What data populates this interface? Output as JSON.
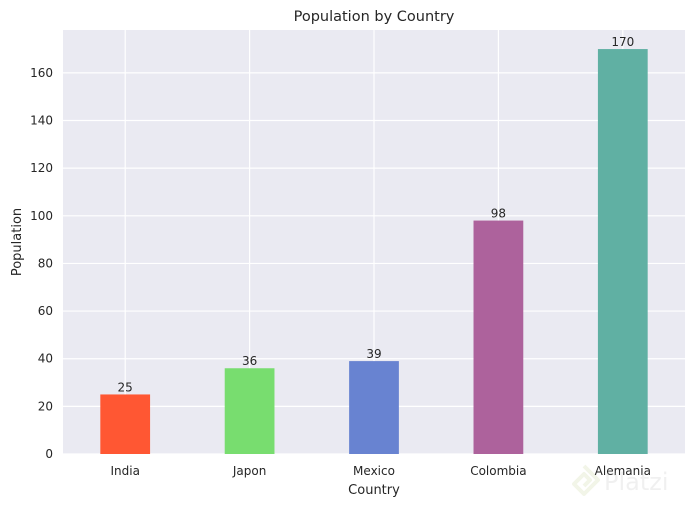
{
  "chart_data": {
    "type": "bar",
    "title": "Population by Country",
    "xlabel": "Country",
    "ylabel": "Population",
    "categories": [
      "India",
      "Japon",
      "Mexico",
      "Colombia",
      "Alemania"
    ],
    "values": [
      25,
      36,
      39,
      98,
      170
    ],
    "colors": [
      "#ff5733",
      "#78dd6f",
      "#6883d1",
      "#ad629c",
      "#60b0a3"
    ],
    "ylim": [
      0,
      178
    ],
    "yticks": [
      0,
      20,
      40,
      60,
      80,
      100,
      120,
      140,
      160
    ],
    "grid": true,
    "background": "#eaeaf2",
    "grid_color": "#ffffff"
  },
  "watermark": {
    "text": "Platzi",
    "icon": "platzi-logo-icon"
  }
}
